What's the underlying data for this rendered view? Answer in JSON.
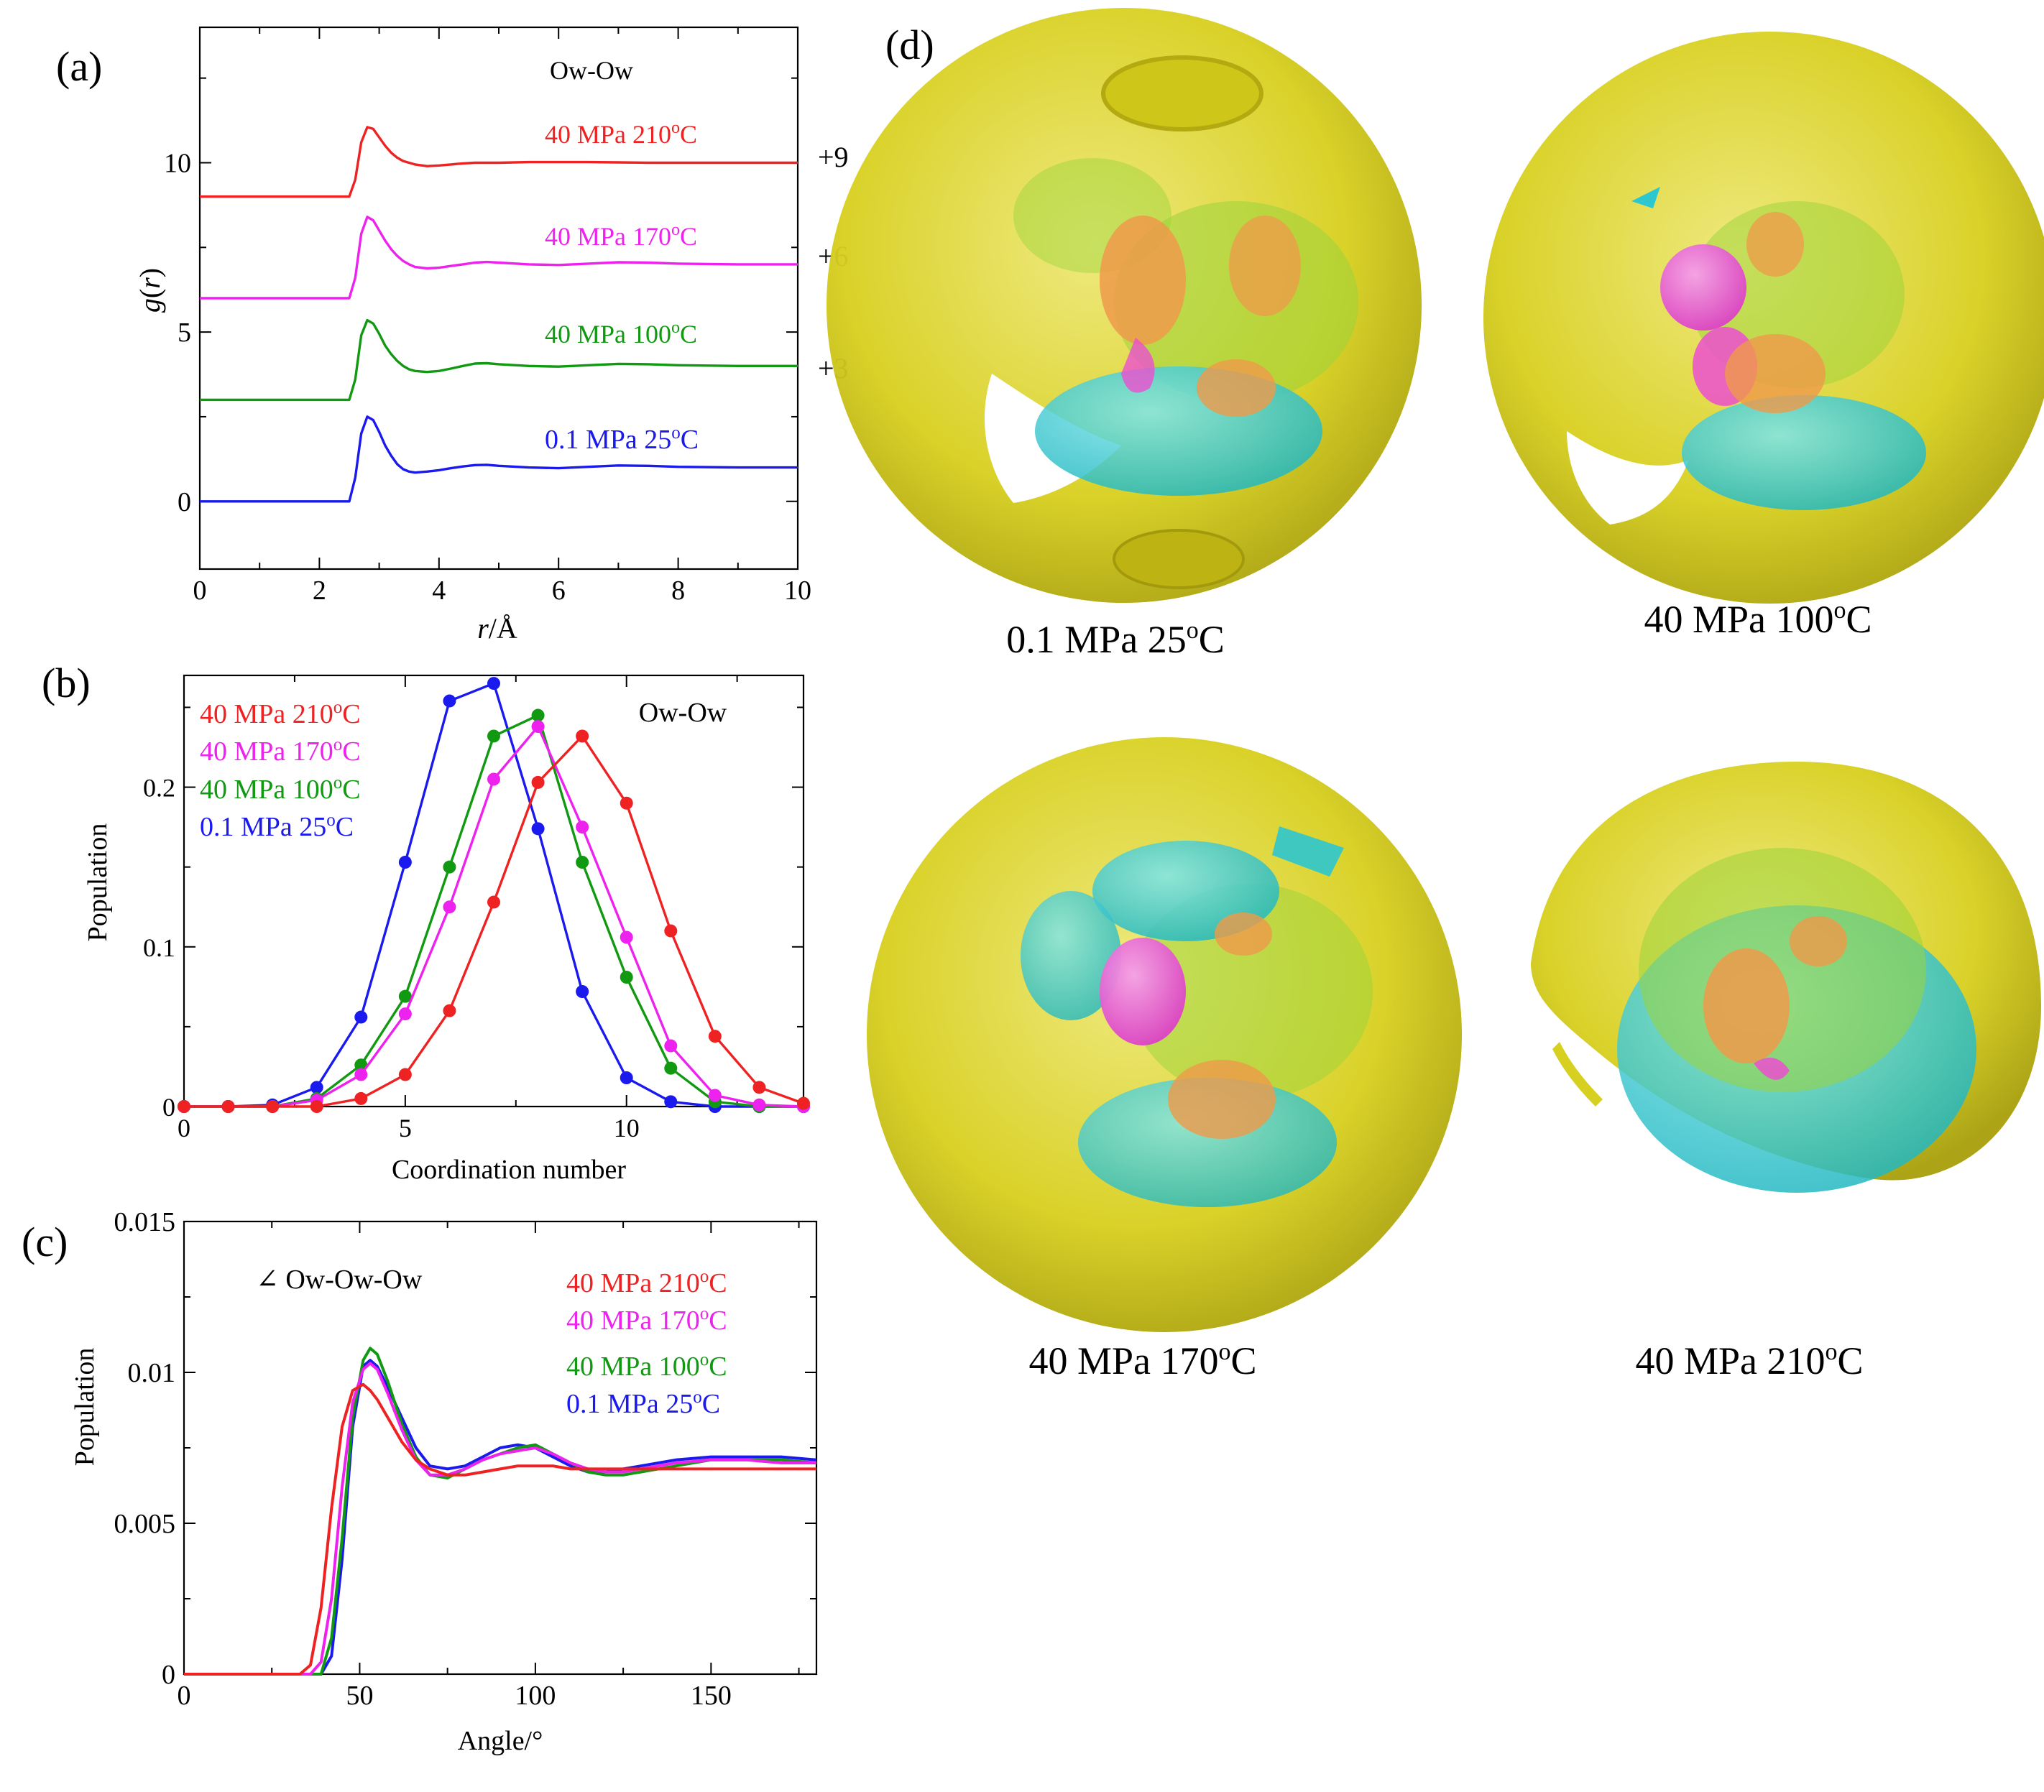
{
  "panel_labels": {
    "a": "(a)",
    "b": "(b)",
    "c": "(c)",
    "d": "(d)"
  },
  "colors": {
    "red": "#ee2222",
    "magenta": "#ee22ee",
    "green": "#119911",
    "blue": "#1a1aee",
    "sphere_yellow": "#d9d21c",
    "cyan": "#2cc7cf",
    "orange": "#ef9a4a",
    "pink": "#ec4fd0",
    "lime": "#9ad43a"
  },
  "chart_data": [
    {
      "id": "a",
      "type": "line",
      "title": "Ow-Ow",
      "xlabel_italic": "r",
      "xlabel_rest": "/Å",
      "ylabel_italic_1": "g",
      "ylabel_mid": "(",
      "ylabel_italic_2": "r",
      "ylabel_end": ")",
      "xlim": [
        0,
        10
      ],
      "ylim": [
        -2,
        14
      ],
      "xticks": [
        "0",
        "2",
        "4",
        "6",
        "8",
        "10"
      ],
      "yticks": [
        "0",
        "5",
        "10"
      ],
      "x": [
        0,
        2.4,
        2.5,
        2.6,
        2.7,
        2.8,
        2.9,
        3.0,
        3.1,
        3.2,
        3.3,
        3.4,
        3.5,
        3.6,
        3.8,
        4.0,
        4.2,
        4.4,
        4.6,
        4.8,
        5.0,
        5.5,
        6.0,
        6.5,
        7.0,
        7.5,
        8.0,
        9.0,
        10.0
      ],
      "series": [
        {
          "name": "40 MPa  210°C",
          "label_main": "40 MPa  210",
          "label_deg": "o",
          "label_unit": "C",
          "offset": "+9",
          "color": "#ee2222",
          "values": [
            9,
            9,
            9.0,
            9.5,
            10.6,
            11.05,
            11.0,
            10.75,
            10.5,
            10.3,
            10.15,
            10.05,
            10.0,
            9.95,
            9.9,
            9.92,
            9.95,
            9.98,
            10.0,
            10.0,
            10.0,
            10.02,
            10.02,
            10.02,
            10.01,
            10.0,
            10.0,
            10.0,
            10.0
          ]
        },
        {
          "name": "40 MPa  170°C",
          "label_main": "40 MPa  170",
          "label_deg": "o",
          "label_unit": "C",
          "offset": "+6",
          "color": "#ee22ee",
          "values": [
            6,
            6,
            6.0,
            6.6,
            7.9,
            8.4,
            8.3,
            8.0,
            7.7,
            7.45,
            7.25,
            7.1,
            7.0,
            6.92,
            6.88,
            6.9,
            6.95,
            7.0,
            7.05,
            7.07,
            7.05,
            7.0,
            6.98,
            7.02,
            7.06,
            7.05,
            7.02,
            7.0,
            7.0
          ]
        },
        {
          "name": "40 MPa  100°C",
          "label_main": "40 MPa  100",
          "label_deg": "o",
          "label_unit": "C",
          "offset": "+3",
          "color": "#119911",
          "values": [
            3,
            3,
            3.0,
            3.6,
            4.9,
            5.35,
            5.25,
            4.95,
            4.6,
            4.35,
            4.15,
            4.0,
            3.9,
            3.85,
            3.82,
            3.85,
            3.92,
            4.0,
            4.07,
            4.08,
            4.05,
            4.0,
            3.98,
            4.02,
            4.06,
            4.05,
            4.02,
            4.0,
            4.0
          ]
        },
        {
          "name": "0.1 MPa  25°C",
          "label_main": "0.1 MPa  25",
          "label_deg": "o",
          "label_unit": "C",
          "offset": "",
          "color": "#1a1aee",
          "values": [
            0,
            0,
            0.0,
            0.7,
            2.0,
            2.5,
            2.4,
            2.05,
            1.65,
            1.35,
            1.1,
            0.95,
            0.88,
            0.85,
            0.88,
            0.92,
            0.98,
            1.03,
            1.07,
            1.08,
            1.05,
            1.0,
            0.98,
            1.02,
            1.06,
            1.05,
            1.02,
            1.0,
            1.0
          ]
        }
      ]
    },
    {
      "id": "b",
      "type": "line",
      "title": "Ow-Ow",
      "xlabel": "Coordination number",
      "ylabel": "Population",
      "xlim": [
        0,
        14
      ],
      "ylim": [
        0,
        0.27
      ],
      "xticks": [
        "0",
        "5",
        "10"
      ],
      "yticks": [
        "0",
        "0.1",
        "0.2"
      ],
      "x": [
        0,
        1,
        2,
        3,
        4,
        5,
        6,
        7,
        8,
        9,
        10,
        11,
        12,
        13,
        14
      ],
      "series": [
        {
          "name": "40 MPa  210°C",
          "label_main": "40 MPa  210",
          "label_deg": "o",
          "label_unit": "C",
          "color": "#ee2222",
          "values": [
            0,
            0,
            0,
            0,
            0.005,
            0.02,
            0.06,
            0.128,
            0.203,
            0.232,
            0.19,
            0.11,
            0.044,
            0.012,
            0.002
          ]
        },
        {
          "name": "40 MPa  170°C",
          "label_main": "40 MPa  170",
          "label_deg": "o",
          "label_unit": "C",
          "color": "#ee22ee",
          "values": [
            0,
            0,
            0,
            0.004,
            0.02,
            0.058,
            0.125,
            0.205,
            0.238,
            0.175,
            0.106,
            0.038,
            0.007,
            0.001,
            0
          ]
        },
        {
          "name": "40 MPa  100°C",
          "label_main": "40 MPa  100",
          "label_deg": "o",
          "label_unit": "C",
          "color": "#119911",
          "values": [
            0,
            0,
            0,
            0.005,
            0.026,
            0.069,
            0.15,
            0.232,
            0.245,
            0.153,
            0.081,
            0.024,
            0.003,
            0,
            0
          ]
        },
        {
          "name": "0.1 MPa  25°C",
          "label_main": "0.1 MPa  25",
          "label_deg": "o",
          "label_unit": "C",
          "color": "#1a1aee",
          "values": [
            0,
            0,
            0.001,
            0.012,
            0.056,
            0.153,
            0.254,
            0.265,
            0.174,
            0.072,
            0.018,
            0.003,
            0,
            0,
            0
          ]
        }
      ]
    },
    {
      "id": "c",
      "type": "line",
      "title": "∠ Ow-Ow-Ow",
      "xlabel": "Angle/°",
      "ylabel": "Population",
      "xlim": [
        0,
        180
      ],
      "ylim": [
        0,
        0.015
      ],
      "xticks": [
        "0",
        "50",
        "100",
        "150"
      ],
      "yticks": [
        "0",
        "0.005",
        "0.01",
        "0.015"
      ],
      "x": [
        0,
        30,
        33,
        36,
        39,
        42,
        45,
        48,
        51,
        53,
        55,
        58,
        62,
        66,
        70,
        75,
        80,
        85,
        90,
        95,
        100,
        105,
        110,
        115,
        120,
        125,
        130,
        140,
        150,
        160,
        170,
        180
      ],
      "series": [
        {
          "name": "40 MPa  210°C",
          "label_main": "40 MPa  210",
          "label_deg": "o",
          "label_unit": "C",
          "color": "#ee2222",
          "values": [
            0,
            0,
            0,
            0.0003,
            0.0022,
            0.0055,
            0.0082,
            0.0094,
            0.0096,
            0.0094,
            0.0091,
            0.0085,
            0.0077,
            0.0071,
            0.0068,
            0.0066,
            0.0066,
            0.0067,
            0.0068,
            0.0069,
            0.0069,
            0.0069,
            0.0068,
            0.0068,
            0.0068,
            0.0068,
            0.0068,
            0.0068,
            0.0068,
            0.0068,
            0.0068,
            0.0068
          ]
        },
        {
          "name": "40 MPa  170°C",
          "label_main": "40 MPa  170",
          "label_deg": "o",
          "label_unit": "C",
          "color": "#ee22ee",
          "values": [
            0,
            0,
            0,
            0,
            0.0004,
            0.0025,
            0.0062,
            0.009,
            0.0101,
            0.0103,
            0.0101,
            0.0093,
            0.0081,
            0.0071,
            0.0066,
            0.0066,
            0.0068,
            0.0071,
            0.0073,
            0.0074,
            0.0075,
            0.0073,
            0.007,
            0.0068,
            0.0067,
            0.0067,
            0.0068,
            0.007,
            0.0071,
            0.0071,
            0.007,
            0.007
          ]
        },
        {
          "name": "40 MPa  100°C",
          "label_main": "40 MPa  100",
          "label_deg": "o",
          "label_unit": "C",
          "color": "#119911",
          "values": [
            0,
            0,
            0,
            0,
            0,
            0.0012,
            0.0045,
            0.0085,
            0.0104,
            0.0108,
            0.0106,
            0.0097,
            0.0083,
            0.0072,
            0.0066,
            0.0065,
            0.0068,
            0.0071,
            0.0073,
            0.0075,
            0.0076,
            0.0073,
            0.007,
            0.0067,
            0.0066,
            0.0066,
            0.0067,
            0.0069,
            0.0071,
            0.0071,
            0.0071,
            0.007
          ]
        },
        {
          "name": "0.1 MPa  25°C",
          "label_main": "0.1 MPa  25",
          "label_deg": "o",
          "label_unit": "C",
          "color": "#1a1aee",
          "values": [
            0,
            0,
            0,
            0,
            0,
            0.0006,
            0.0038,
            0.0082,
            0.0102,
            0.0104,
            0.0102,
            0.0095,
            0.0085,
            0.0075,
            0.0069,
            0.0068,
            0.0069,
            0.0072,
            0.0075,
            0.0076,
            0.0075,
            0.0072,
            0.0069,
            0.0067,
            0.0067,
            0.0068,
            0.0069,
            0.0071,
            0.0072,
            0.0072,
            0.0072,
            0.0071
          ]
        }
      ]
    }
  ],
  "spatial_maps": [
    {
      "main": "0.1 MPa 25",
      "deg": "o",
      "unit": "C"
    },
    {
      "main": "40 MPa 100",
      "deg": "o",
      "unit": "C"
    },
    {
      "main": "40 MPa 170",
      "deg": "o",
      "unit": "C"
    },
    {
      "main": "40 MPa 210",
      "deg": "o",
      "unit": "C"
    }
  ]
}
